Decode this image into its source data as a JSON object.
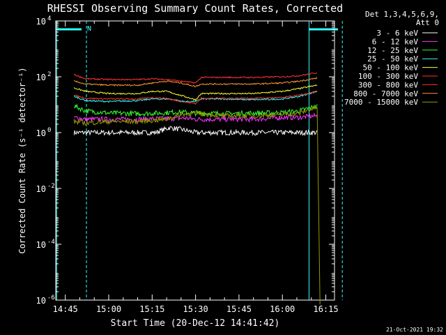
{
  "chart_data": {
    "type": "line",
    "title": "RHESSI Observing Summary Count Rates, Corrected",
    "xlabel": "Start Time (20-Dec-12 14:41:42)",
    "ylabel": "Corrected Count Rate (s⁻¹ detector⁻¹)",
    "ylog": true,
    "ylim_exp": [
      -6,
      4
    ],
    "yticks": [
      {
        "base": "10",
        "exp": "4",
        "value": 10000
      },
      {
        "base": "10",
        "exp": "2",
        "value": 100
      },
      {
        "base": "10",
        "exp": "0",
        "value": 1
      },
      {
        "base": "10",
        "exp": "-2",
        "value": 0.01
      },
      {
        "base": "10",
        "exp": "-4",
        "value": 0.0001
      },
      {
        "base": "10",
        "exp": "-6",
        "value": 1e-06
      }
    ],
    "xlim_min": [
      41.7,
      138.0
    ],
    "xticks": [
      {
        "label": "14:45",
        "t": 45
      },
      {
        "label": "15:00",
        "t": 60
      },
      {
        "label": "15:15",
        "t": 75
      },
      {
        "label": "15:30",
        "t": 90
      },
      {
        "label": "15:45",
        "t": 105
      },
      {
        "label": "16:00",
        "t": 120
      },
      {
        "label": "16:15",
        "t": 135
      }
    ],
    "legend_header": [
      "Det 1,3,4,5,6,9,",
      "Att 0"
    ],
    "legend_position": "top-right, outside plot",
    "series": [
      {
        "name": "3 - 6 keV",
        "color": "#ffffff",
        "t": [
          48,
          60,
          66,
          72,
          76,
          81,
          85,
          90,
          96,
          102,
          108,
          114,
          120,
          126,
          130,
          132
        ],
        "values": [
          1.0,
          1.0,
          1.0,
          1.0,
          1.0,
          1.5,
          1.3,
          1.0,
          1.0,
          1.0,
          1.0,
          1.0,
          1.0,
          1.0,
          1.0,
          1.0
        ]
      },
      {
        "name": "6 - 12 keV",
        "color": "#ff33ff",
        "t": [
          48,
          52,
          60,
          70,
          80,
          87,
          90,
          100,
          110,
          120,
          126,
          132
        ],
        "values": [
          3.5,
          3.0,
          3.0,
          3.0,
          3.2,
          3.3,
          3.0,
          3.0,
          3.0,
          3.5,
          3.5,
          4.0
        ]
      },
      {
        "name": "12 - 25 keV",
        "color": "#33ff33",
        "t": [
          48,
          52,
          60,
          70,
          78,
          84,
          90,
          100,
          110,
          120,
          126,
          132
        ],
        "values": [
          9.0,
          6.0,
          5.0,
          4.8,
          5.0,
          5.5,
          5.0,
          4.8,
          5.0,
          5.2,
          6.0,
          9.0
        ]
      },
      {
        "name": "25 - 50 keV",
        "color": "#33ffff",
        "t": [
          48,
          52,
          60,
          70,
          75,
          81,
          86,
          90,
          92,
          100,
          110,
          120,
          126,
          132
        ],
        "values": [
          20,
          14,
          13,
          14,
          16,
          16,
          13,
          13,
          16,
          16,
          15,
          16,
          20,
          30
        ]
      },
      {
        "name": "50 - 100 keV",
        "color": "#ffff33",
        "t": [
          48,
          52,
          60,
          70,
          75,
          80,
          86,
          90,
          92,
          100,
          110,
          120,
          126,
          132
        ],
        "values": [
          40,
          30,
          25,
          25,
          30,
          30,
          20,
          15,
          25,
          25,
          25,
          30,
          38,
          50
        ]
      },
      {
        "name": "100 - 300 keV",
        "color": "#ff3333",
        "t": [
          48,
          52,
          60,
          70,
          75,
          80,
          85,
          90,
          92,
          100,
          110,
          120,
          126,
          132
        ],
        "values": [
          120,
          85,
          80,
          80,
          85,
          80,
          70,
          60,
          95,
          95,
          95,
          100,
          110,
          140
        ]
      },
      {
        "name": "300 - 800 keV",
        "color": "#ff3333",
        "t": [
          48,
          52,
          60,
          70,
          75,
          80,
          85,
          90,
          92,
          100,
          110,
          120,
          126,
          132
        ],
        "values": [
          22,
          17,
          16,
          16,
          18,
          17,
          13,
          11,
          17,
          17,
          17,
          18,
          22,
          30
        ]
      },
      {
        "name": "800 - 7000 keV",
        "color": "#ff9933",
        "t": [
          48,
          52,
          60,
          70,
          75,
          80,
          85,
          90,
          92,
          100,
          110,
          120,
          126,
          132
        ],
        "values": [
          70,
          55,
          50,
          50,
          60,
          70,
          60,
          45,
          55,
          55,
          55,
          60,
          70,
          90
        ]
      },
      {
        "name": "7000 - 15000 keV",
        "color": "#999900",
        "t": [
          48,
          52,
          60,
          70,
          80,
          85,
          90,
          95,
          100,
          110,
          120,
          126,
          130,
          132,
          133
        ],
        "values": [
          2.5,
          2.2,
          2.5,
          2.5,
          3.0,
          4.5,
          5.0,
          4.5,
          4.0,
          4.0,
          4.5,
          5.0,
          7.0,
          8.0,
          7e-07
        ]
      }
    ],
    "markers": {
      "vertical_lines_solid_min": [
        42.0,
        129.2
      ],
      "vertical_lines_dashed_min": [
        52.3,
        140.7
      ],
      "horizontal_bars": [
        {
          "t": [
            42.0,
            50.6
          ],
          "value": 5000
        },
        {
          "t": [
            129.2,
            139.2
          ],
          "value": 5000
        }
      ],
      "label": "N"
    },
    "timestamp": "21-Oct-2021 19:32"
  }
}
